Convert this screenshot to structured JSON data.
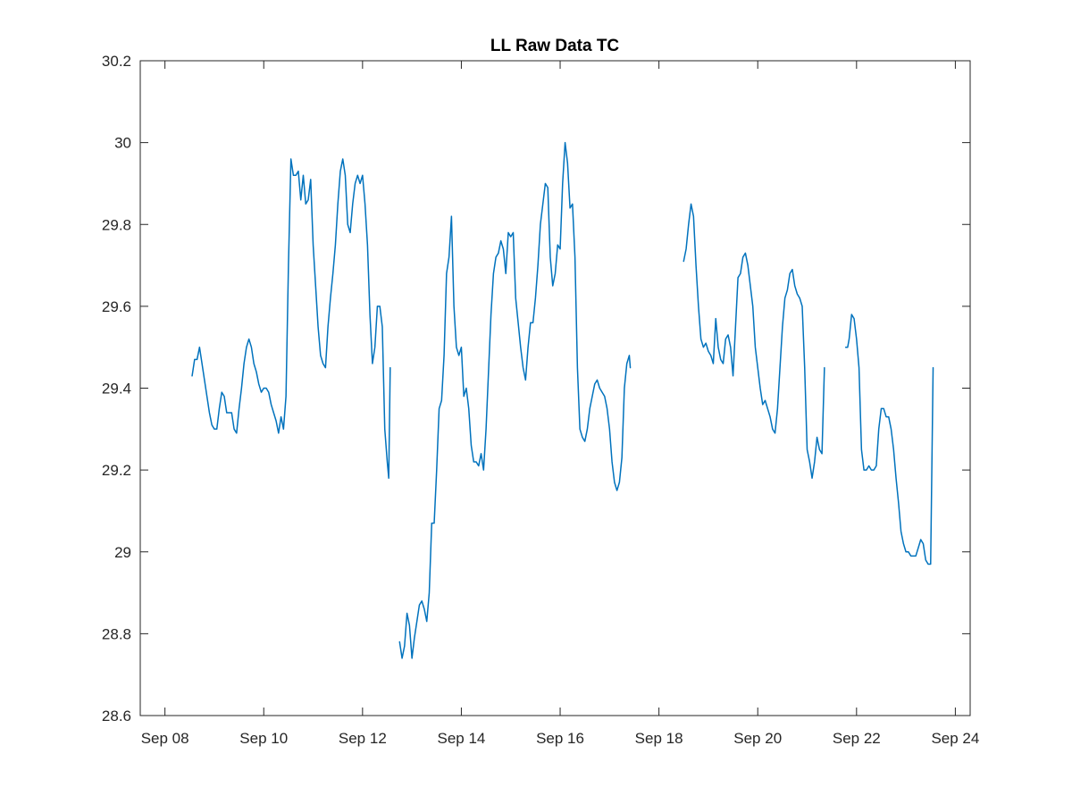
{
  "chart_data": {
    "type": "line",
    "title": "LL Raw Data TC",
    "xlabel": "",
    "ylabel": "",
    "x_ticks": [
      {
        "label": "Sep 08",
        "day": 8
      },
      {
        "label": "Sep 10",
        "day": 10
      },
      {
        "label": "Sep 12",
        "day": 12
      },
      {
        "label": "Sep 14",
        "day": 14
      },
      {
        "label": "Sep 16",
        "day": 16
      },
      {
        "label": "Sep 18",
        "day": 18
      },
      {
        "label": "Sep 20",
        "day": 20
      },
      {
        "label": "Sep 22",
        "day": 22
      },
      {
        "label": "Sep 24",
        "day": 24
      }
    ],
    "y_ticks": [
      "28.6",
      "28.8",
      "29",
      "29.2",
      "29.4",
      "29.6",
      "29.8",
      "30",
      "30.2"
    ],
    "xlim": [
      7.5,
      24.3
    ],
    "ylim": [
      28.6,
      30.2
    ],
    "grid": false,
    "line_color": "#0072BD",
    "series": [
      {
        "segments": [
          [
            [
              8.55,
              29.43
            ],
            [
              8.6,
              29.47
            ],
            [
              8.65,
              29.47
            ],
            [
              8.7,
              29.5
            ],
            [
              8.75,
              29.46
            ],
            [
              8.8,
              29.42
            ],
            [
              8.85,
              29.38
            ],
            [
              8.9,
              29.34
            ],
            [
              8.95,
              29.31
            ],
            [
              9.0,
              29.3
            ],
            [
              9.05,
              29.3
            ],
            [
              9.1,
              29.35
            ],
            [
              9.15,
              29.39
            ],
            [
              9.2,
              29.38
            ],
            [
              9.25,
              29.34
            ],
            [
              9.3,
              29.34
            ],
            [
              9.35,
              29.34
            ],
            [
              9.4,
              29.3
            ],
            [
              9.45,
              29.29
            ],
            [
              9.5,
              29.35
            ],
            [
              9.55,
              29.4
            ],
            [
              9.6,
              29.46
            ],
            [
              9.65,
              29.5
            ],
            [
              9.7,
              29.52
            ],
            [
              9.75,
              29.5
            ],
            [
              9.8,
              29.46
            ],
            [
              9.85,
              29.44
            ],
            [
              9.9,
              29.41
            ],
            [
              9.95,
              29.39
            ],
            [
              10.0,
              29.4
            ],
            [
              10.05,
              29.4
            ],
            [
              10.1,
              29.39
            ],
            [
              10.15,
              29.36
            ],
            [
              10.2,
              29.34
            ],
            [
              10.25,
              29.32
            ],
            [
              10.3,
              29.29
            ],
            [
              10.35,
              29.33
            ],
            [
              10.4,
              29.3
            ],
            [
              10.45,
              29.38
            ],
            [
              10.5,
              29.7
            ],
            [
              10.55,
              29.96
            ],
            [
              10.6,
              29.92
            ],
            [
              10.65,
              29.92
            ],
            [
              10.7,
              29.93
            ],
            [
              10.75,
              29.86
            ],
            [
              10.8,
              29.92
            ],
            [
              10.85,
              29.85
            ],
            [
              10.9,
              29.86
            ],
            [
              10.95,
              29.91
            ],
            [
              11.0,
              29.75
            ],
            [
              11.05,
              29.65
            ],
            [
              11.1,
              29.55
            ],
            [
              11.15,
              29.48
            ],
            [
              11.2,
              29.46
            ],
            [
              11.25,
              29.45
            ],
            [
              11.3,
              29.55
            ],
            [
              11.35,
              29.62
            ],
            [
              11.4,
              29.68
            ],
            [
              11.45,
              29.75
            ],
            [
              11.5,
              29.85
            ],
            [
              11.55,
              29.93
            ],
            [
              11.6,
              29.96
            ],
            [
              11.65,
              29.92
            ],
            [
              11.7,
              29.8
            ],
            [
              11.75,
              29.78
            ],
            [
              11.8,
              29.85
            ],
            [
              11.85,
              29.9
            ],
            [
              11.9,
              29.92
            ],
            [
              11.95,
              29.9
            ],
            [
              12.0,
              29.92
            ],
            [
              12.05,
              29.85
            ],
            [
              12.1,
              29.75
            ],
            [
              12.15,
              29.58
            ],
            [
              12.2,
              29.46
            ],
            [
              12.25,
              29.5
            ],
            [
              12.3,
              29.6
            ],
            [
              12.35,
              29.6
            ],
            [
              12.4,
              29.55
            ],
            [
              12.45,
              29.3
            ],
            [
              12.5,
              29.22
            ],
            [
              12.53,
              29.18
            ],
            [
              12.56,
              29.45
            ]
          ],
          [
            [
              12.75,
              28.78
            ],
            [
              12.8,
              28.74
            ],
            [
              12.85,
              28.77
            ],
            [
              12.9,
              28.85
            ],
            [
              12.95,
              28.82
            ],
            [
              13.0,
              28.74
            ],
            [
              13.05,
              28.79
            ],
            [
              13.1,
              28.83
            ],
            [
              13.15,
              28.87
            ],
            [
              13.2,
              28.88
            ],
            [
              13.25,
              28.86
            ],
            [
              13.3,
              28.83
            ],
            [
              13.35,
              28.9
            ],
            [
              13.4,
              29.07
            ],
            [
              13.45,
              29.07
            ],
            [
              13.5,
              29.2
            ],
            [
              13.55,
              29.35
            ],
            [
              13.6,
              29.37
            ],
            [
              13.65,
              29.48
            ],
            [
              13.7,
              29.68
            ],
            [
              13.75,
              29.72
            ],
            [
              13.8,
              29.82
            ],
            [
              13.85,
              29.6
            ],
            [
              13.9,
              29.5
            ],
            [
              13.95,
              29.48
            ],
            [
              14.0,
              29.5
            ],
            [
              14.05,
              29.38
            ],
            [
              14.1,
              29.4
            ],
            [
              14.15,
              29.35
            ],
            [
              14.2,
              29.26
            ],
            [
              14.25,
              29.22
            ],
            [
              14.3,
              29.22
            ],
            [
              14.35,
              29.21
            ],
            [
              14.4,
              29.24
            ],
            [
              14.45,
              29.2
            ],
            [
              14.5,
              29.3
            ],
            [
              14.55,
              29.44
            ],
            [
              14.6,
              29.58
            ],
            [
              14.65,
              29.68
            ],
            [
              14.7,
              29.72
            ],
            [
              14.75,
              29.73
            ],
            [
              14.8,
              29.76
            ],
            [
              14.85,
              29.74
            ],
            [
              14.9,
              29.68
            ],
            [
              14.95,
              29.78
            ],
            [
              15.0,
              29.77
            ],
            [
              15.05,
              29.78
            ],
            [
              15.1,
              29.62
            ],
            [
              15.15,
              29.56
            ],
            [
              15.2,
              29.5
            ],
            [
              15.25,
              29.45
            ],
            [
              15.3,
              29.42
            ],
            [
              15.35,
              29.5
            ],
            [
              15.4,
              29.56
            ],
            [
              15.45,
              29.56
            ],
            [
              15.5,
              29.62
            ],
            [
              15.55,
              29.7
            ],
            [
              15.6,
              29.8
            ],
            [
              15.65,
              29.85
            ],
            [
              15.7,
              29.9
            ],
            [
              15.75,
              29.89
            ],
            [
              15.8,
              29.72
            ],
            [
              15.85,
              29.65
            ],
            [
              15.9,
              29.68
            ],
            [
              15.95,
              29.75
            ],
            [
              16.0,
              29.74
            ],
            [
              16.05,
              29.9
            ],
            [
              16.1,
              30.0
            ],
            [
              16.15,
              29.95
            ],
            [
              16.2,
              29.84
            ],
            [
              16.25,
              29.85
            ],
            [
              16.3,
              29.72
            ],
            [
              16.35,
              29.45
            ],
            [
              16.4,
              29.3
            ],
            [
              16.45,
              29.28
            ],
            [
              16.5,
              29.27
            ],
            [
              16.55,
              29.3
            ],
            [
              16.6,
              29.35
            ],
            [
              16.65,
              29.38
            ],
            [
              16.7,
              29.41
            ],
            [
              16.75,
              29.42
            ],
            [
              16.8,
              29.4
            ],
            [
              16.85,
              29.39
            ],
            [
              16.9,
              29.38
            ],
            [
              16.95,
              29.35
            ],
            [
              17.0,
              29.3
            ],
            [
              17.05,
              29.22
            ],
            [
              17.1,
              29.17
            ],
            [
              17.15,
              29.15
            ],
            [
              17.2,
              29.17
            ],
            [
              17.25,
              29.23
            ],
            [
              17.3,
              29.4
            ],
            [
              17.35,
              29.46
            ],
            [
              17.4,
              29.48
            ],
            [
              17.42,
              29.45
            ]
          ],
          [
            [
              18.5,
              29.71
            ],
            [
              18.55,
              29.74
            ],
            [
              18.6,
              29.8
            ],
            [
              18.65,
              29.85
            ],
            [
              18.7,
              29.82
            ],
            [
              18.75,
              29.7
            ],
            [
              18.8,
              29.6
            ],
            [
              18.85,
              29.52
            ],
            [
              18.9,
              29.5
            ],
            [
              18.95,
              29.51
            ],
            [
              19.0,
              29.49
            ],
            [
              19.05,
              29.48
            ],
            [
              19.1,
              29.46
            ],
            [
              19.15,
              29.57
            ],
            [
              19.2,
              29.5
            ],
            [
              19.25,
              29.47
            ],
            [
              19.3,
              29.46
            ],
            [
              19.35,
              29.52
            ],
            [
              19.4,
              29.53
            ],
            [
              19.45,
              29.5
            ],
            [
              19.5,
              29.43
            ],
            [
              19.55,
              29.55
            ],
            [
              19.6,
              29.67
            ],
            [
              19.65,
              29.68
            ],
            [
              19.7,
              29.72
            ],
            [
              19.75,
              29.73
            ],
            [
              19.8,
              29.7
            ],
            [
              19.85,
              29.65
            ],
            [
              19.9,
              29.6
            ],
            [
              19.95,
              29.5
            ],
            [
              20.0,
              29.45
            ],
            [
              20.05,
              29.4
            ],
            [
              20.1,
              29.36
            ],
            [
              20.15,
              29.37
            ],
            [
              20.2,
              29.35
            ],
            [
              20.25,
              29.33
            ],
            [
              20.3,
              29.3
            ],
            [
              20.35,
              29.29
            ],
            [
              20.4,
              29.35
            ],
            [
              20.45,
              29.45
            ],
            [
              20.5,
              29.55
            ],
            [
              20.55,
              29.62
            ],
            [
              20.6,
              29.64
            ],
            [
              20.65,
              29.68
            ],
            [
              20.7,
              29.69
            ],
            [
              20.75,
              29.65
            ],
            [
              20.8,
              29.63
            ],
            [
              20.85,
              29.62
            ],
            [
              20.9,
              29.6
            ],
            [
              20.95,
              29.45
            ],
            [
              21.0,
              29.25
            ],
            [
              21.05,
              29.22
            ],
            [
              21.1,
              29.18
            ],
            [
              21.15,
              29.22
            ],
            [
              21.2,
              29.28
            ],
            [
              21.25,
              29.25
            ],
            [
              21.3,
              29.24
            ],
            [
              21.35,
              29.45
            ]
          ],
          [
            [
              21.78,
              29.5
            ],
            [
              21.82,
              29.5
            ],
            [
              21.85,
              29.52
            ],
            [
              21.9,
              29.58
            ],
            [
              21.95,
              29.57
            ],
            [
              22.0,
              29.52
            ],
            [
              22.05,
              29.45
            ],
            [
              22.1,
              29.25
            ],
            [
              22.15,
              29.2
            ],
            [
              22.2,
              29.2
            ],
            [
              22.25,
              29.21
            ],
            [
              22.3,
              29.2
            ],
            [
              22.35,
              29.2
            ],
            [
              22.4,
              29.21
            ],
            [
              22.45,
              29.3
            ],
            [
              22.5,
              29.35
            ],
            [
              22.55,
              29.35
            ],
            [
              22.6,
              29.33
            ],
            [
              22.65,
              29.33
            ],
            [
              22.7,
              29.3
            ],
            [
              22.75,
              29.25
            ],
            [
              22.8,
              29.18
            ],
            [
              22.85,
              29.12
            ],
            [
              22.9,
              29.05
            ],
            [
              22.95,
              29.02
            ],
            [
              23.0,
              29.0
            ],
            [
              23.05,
              29.0
            ],
            [
              23.1,
              28.99
            ],
            [
              23.15,
              28.99
            ],
            [
              23.2,
              28.99
            ],
            [
              23.25,
              29.01
            ],
            [
              23.3,
              29.03
            ],
            [
              23.35,
              29.02
            ],
            [
              23.4,
              28.98
            ],
            [
              23.45,
              28.97
            ],
            [
              23.5,
              28.97
            ],
            [
              23.55,
              29.45
            ]
          ]
        ]
      }
    ]
  }
}
